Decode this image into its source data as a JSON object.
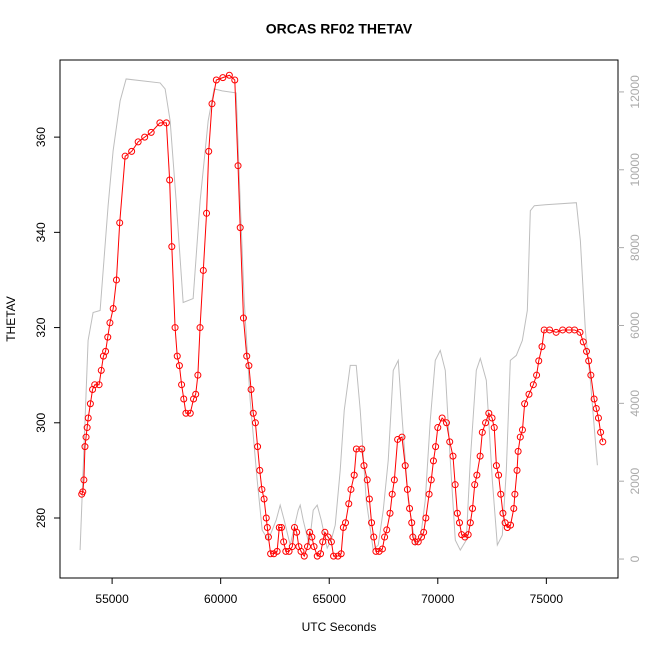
{
  "chart_data": {
    "type": "line",
    "title": "ORCAS RF02 THETAV",
    "x_label": "UTC Seconds",
    "y_label": "THETAV",
    "xlim": [
      52600,
      78300
    ],
    "xticks": [
      55000,
      60000,
      65000,
      70000,
      75000
    ],
    "ylim": [
      267.4,
      376.2
    ],
    "yticks": [
      280,
      300,
      320,
      340,
      360
    ],
    "y2lim": [
      -487,
      12820
    ],
    "y2ticks": [
      0,
      2000,
      4000,
      6000,
      8000,
      10000,
      12000
    ],
    "series": [
      {
        "color": "#bebebe",
        "axis": "y2",
        "x": [
          53525,
          53894,
          54124,
          54447,
          54816,
          55046,
          55369,
          55645,
          57212,
          57442,
          57673,
          57949,
          58272,
          58732,
          59055,
          59424,
          59700,
          60069,
          60714,
          60898,
          61083,
          61359,
          61682,
          61912,
          62188,
          62557,
          62741,
          62925,
          63202,
          63571,
          63663,
          63801,
          64078,
          64262,
          64446,
          64631,
          64907,
          65092,
          65276,
          65506,
          65691,
          65967,
          66244,
          66428,
          66705,
          67027,
          67257,
          67488,
          67718,
          67949,
          68179,
          68364,
          68640,
          68962,
          69193,
          69423,
          69654,
          69884,
          70114,
          70345,
          70575,
          70806,
          71036,
          71313,
          71497,
          71774,
          71958,
          72235,
          72511,
          72742,
          72972,
          73157,
          73341,
          73617,
          73894,
          74124,
          74262,
          74447,
          74954,
          76382,
          76567,
          76797,
          77027,
          77350
        ],
        "values": [
          231,
          5615,
          6333,
          6385,
          9077,
          10487,
          11769,
          12333,
          12231,
          12077,
          11256,
          9205,
          6590,
          6692,
          9205,
          11256,
          12077,
          12026,
          11974,
          9205,
          6641,
          4077,
          2026,
          744,
          487,
          1000,
          1385,
          1000,
          359,
          1256,
          1385,
          1000,
          359,
          1256,
          1385,
          1000,
          282,
          487,
          872,
          2282,
          3820,
          4974,
          4974,
          3820,
          1513,
          231,
          359,
          1256,
          2538,
          4846,
          5103,
          3564,
          1513,
          359,
          487,
          1513,
          3564,
          5103,
          5359,
          4846,
          2538,
          487,
          231,
          487,
          2538,
          4846,
          5154,
          4590,
          2026,
          359,
          615,
          2282,
          5103,
          5231,
          5615,
          6385,
          8949,
          9077,
          9103,
          9154,
          8179,
          5872,
          4590,
          2410
        ]
      },
      {
        "color": "#ff0000",
        "axis": "y",
        "markers": true,
        "x": [
          53600,
          53650,
          53700,
          53750,
          53800,
          53850,
          53900,
          54000,
          54100,
          54200,
          54400,
          54500,
          54600,
          54700,
          54800,
          54900,
          55050,
          55200,
          55350,
          55600,
          55900,
          56200,
          56500,
          56800,
          57200,
          57500,
          57650,
          57750,
          57900,
          58000,
          58100,
          58200,
          58300,
          58400,
          58600,
          58750,
          58850,
          58950,
          59050,
          59200,
          59350,
          59450,
          59600,
          59800,
          60100,
          60400,
          60650,
          60800,
          60900,
          61050,
          61200,
          61300,
          61400,
          61500,
          61600,
          61700,
          61800,
          61900,
          62000,
          62100,
          62150,
          62200,
          62300,
          62450,
          62600,
          62700,
          62800,
          62900,
          63000,
          63150,
          63300,
          63400,
          63500,
          63600,
          63700,
          63850,
          64000,
          64100,
          64200,
          64300,
          64450,
          64600,
          64700,
          64800,
          64950,
          65100,
          65200,
          65400,
          65550,
          65650,
          65750,
          65900,
          66000,
          66150,
          66250,
          66500,
          66600,
          66750,
          66850,
          66950,
          67050,
          67150,
          67300,
          67450,
          67550,
          67650,
          67800,
          67900,
          68000,
          68150,
          68350,
          68500,
          68600,
          68700,
          68800,
          68850,
          68950,
          69100,
          69250,
          69350,
          69450,
          69600,
          69700,
          69800,
          69900,
          70000,
          70200,
          70400,
          70550,
          70700,
          70800,
          70900,
          71000,
          71100,
          71250,
          71400,
          71500,
          71600,
          71700,
          71800,
          71950,
          72050,
          72200,
          72350,
          72500,
          72600,
          72700,
          72800,
          72900,
          73000,
          73100,
          73200,
          73350,
          73500,
          73550,
          73650,
          73700,
          73800,
          73900,
          74000,
          74200,
          74400,
          74550,
          74650,
          74800,
          74900,
          75150,
          75450,
          75750,
          76050,
          76300,
          76550,
          76700,
          76850,
          76950,
          77050,
          77200,
          77300,
          77400,
          77500,
          77600
        ],
        "values": [
          285,
          285.5,
          288,
          295,
          297,
          299,
          301,
          304,
          307,
          308,
          308,
          311,
          314,
          315,
          318,
          321,
          324,
          330,
          342,
          356,
          357,
          359,
          360,
          361,
          363,
          363,
          351,
          337,
          320,
          314,
          312,
          308,
          305,
          302,
          302,
          305,
          306,
          310,
          320,
          332,
          344,
          357,
          367,
          372,
          372.5,
          373,
          372,
          354,
          341,
          322,
          314,
          312,
          307,
          302,
          300,
          295,
          290,
          286,
          284,
          280,
          278,
          276,
          272.5,
          272.5,
          273,
          278,
          278,
          275,
          273,
          273,
          274,
          278,
          277,
          274,
          273,
          272,
          274,
          277,
          276,
          274,
          272,
          272.5,
          275,
          277,
          276,
          275,
          272,
          272,
          272.5,
          278,
          279,
          283,
          286,
          289,
          294.5,
          294.5,
          291,
          288,
          284,
          279,
          276,
          273,
          273,
          273.5,
          276,
          277.5,
          281,
          285,
          288,
          296.5,
          297,
          291,
          286,
          282,
          279,
          276,
          275,
          275,
          276,
          277,
          280,
          285,
          288,
          292,
          295,
          299,
          301,
          300,
          296,
          293,
          287,
          281,
          279,
          276.5,
          276,
          276.5,
          279,
          282,
          287,
          289,
          293,
          298,
          300,
          302,
          301,
          299,
          291,
          289,
          285,
          281,
          279,
          278,
          278.5,
          282,
          285,
          290,
          294,
          297,
          298.5,
          304,
          306,
          308,
          310,
          313,
          316,
          319.5,
          319.5,
          319,
          319.5,
          319.5,
          319.5,
          319,
          317,
          315,
          313,
          310,
          305,
          303,
          301,
          298,
          296
        ]
      }
    ]
  }
}
